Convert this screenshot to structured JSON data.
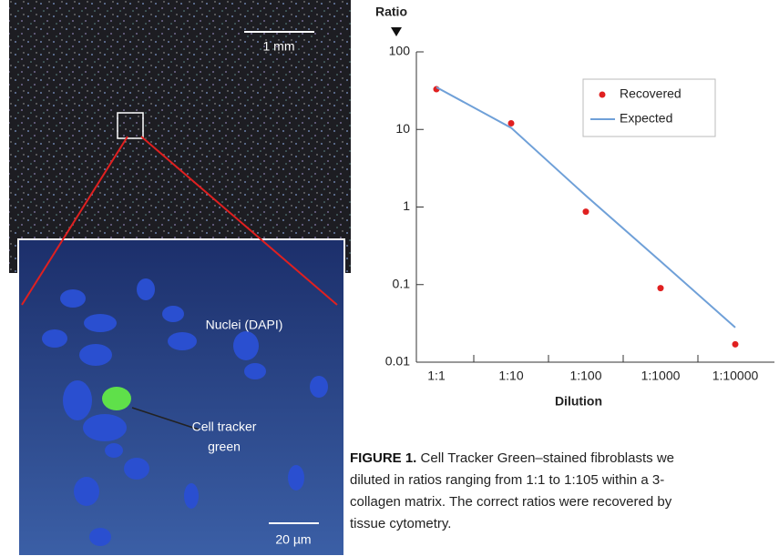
{
  "chart_data": {
    "type": "line",
    "y_label": "Ratio",
    "x_label": "Dilution",
    "categories": [
      "1:1",
      "1:10",
      "1:100",
      "1:1000",
      "1:10000"
    ],
    "series": [
      {
        "name": "Recovered",
        "type": "scatter",
        "color": "#e02020",
        "values": [
          33,
          12,
          0.87,
          0.09,
          0.017
        ]
      },
      {
        "name": "Expected",
        "type": "line",
        "color": "#6fa0d8",
        "values": [
          35,
          10.5,
          1.4,
          0.2,
          0.028
        ]
      }
    ],
    "ylim": [
      0.01,
      100
    ],
    "yticks": [
      100,
      10,
      1,
      0.1,
      0.01
    ],
    "ylog": true,
    "legend": "upper right"
  },
  "images": {
    "scale_top": "1 mm",
    "nuclei": "Nuclei (DAPI)",
    "tracker": [
      "Cell tracker",
      "green"
    ],
    "scale_inset": "20 µm"
  },
  "caption": {
    "label": "FIGURE 1.",
    "lines": [
      "Cell Tracker Green–stained fibroblasts we",
      "diluted in ratios ranging from 1:1 to 1:105 within a 3-",
      "collagen matrix. The correct ratios were recovered by",
      "tissue cytometry."
    ]
  }
}
